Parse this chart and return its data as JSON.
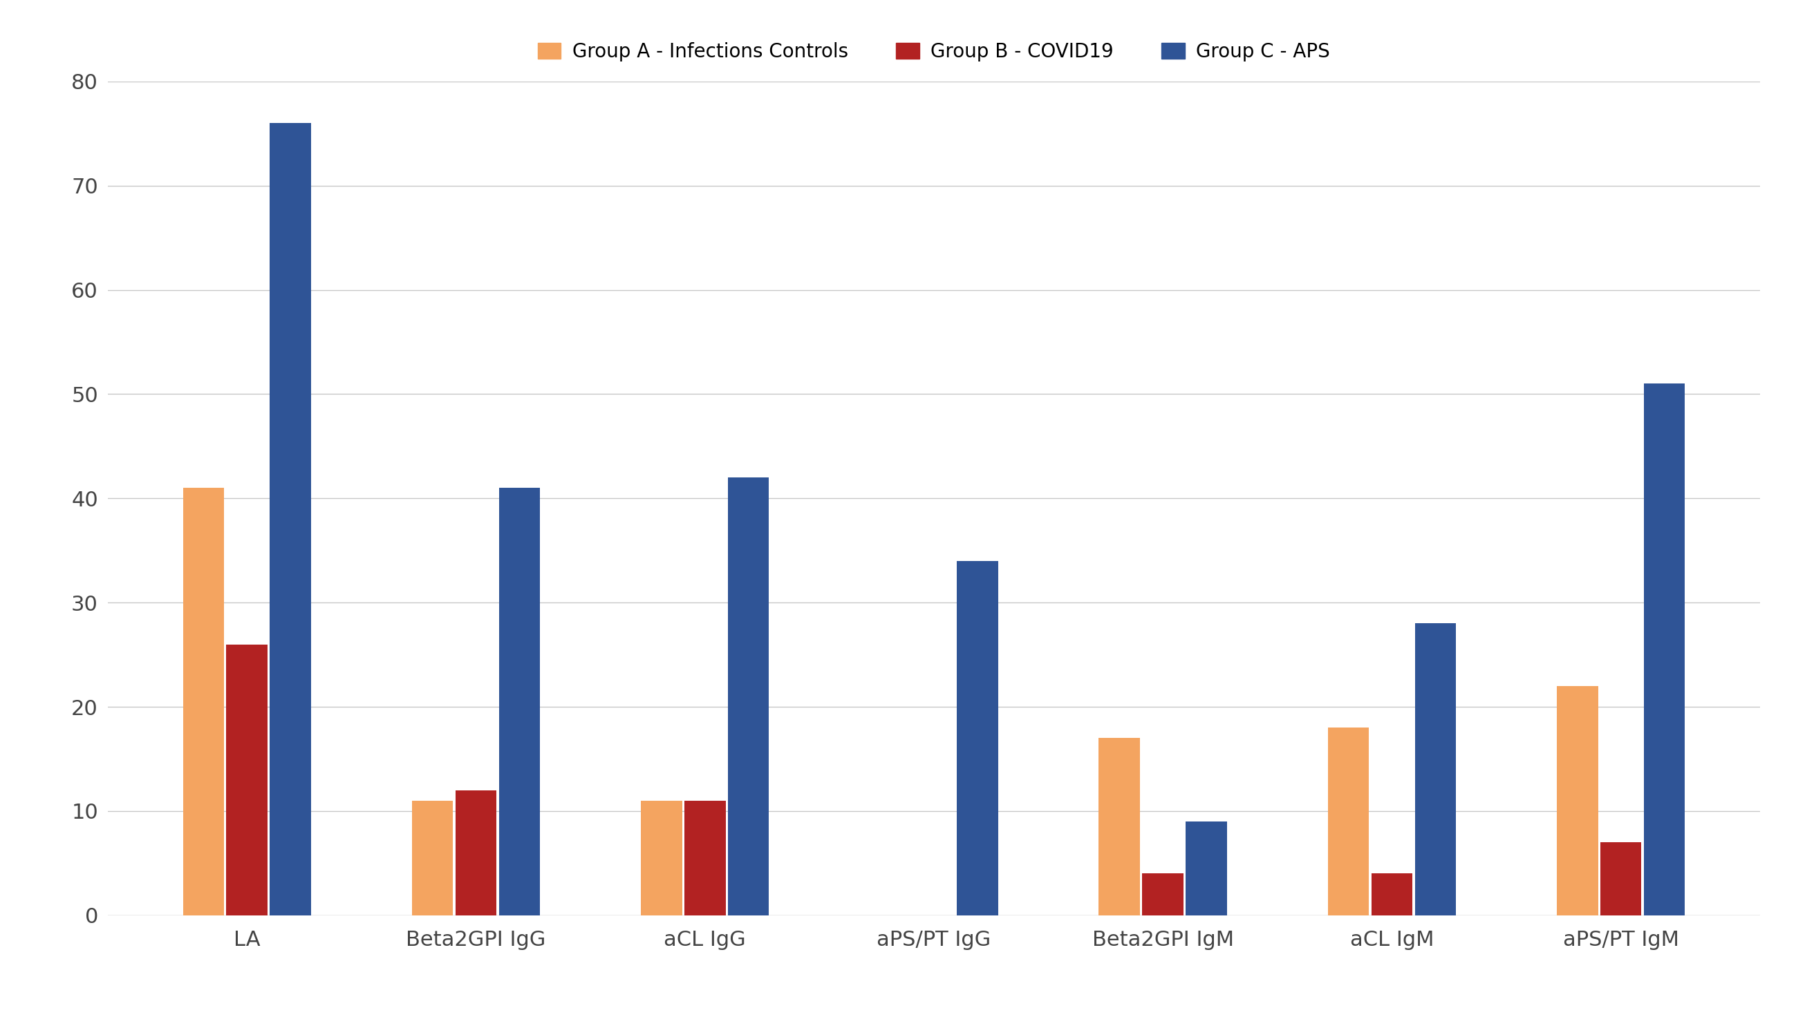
{
  "categories": [
    "LA",
    "Beta2GPI IgG",
    "aCL IgG",
    "aPS/PT IgG",
    "Beta2GPI IgM",
    "aCL IgM",
    "aPS/PT IgM"
  ],
  "groups": [
    "Group A - Infections Controls",
    "Group B - COVID19",
    "Group C - APS"
  ],
  "values": {
    "Group A - Infections Controls": [
      41,
      11,
      11,
      0,
      17,
      18,
      22
    ],
    "Group B - COVID19": [
      26,
      12,
      11,
      0,
      4,
      4,
      7
    ],
    "Group C - APS": [
      76,
      41,
      42,
      34,
      9,
      28,
      51
    ]
  },
  "colors": {
    "Group A - Infections Controls": "#F4A460",
    "Group B - COVID19": "#B22222",
    "Group C - APS": "#2F5496"
  },
  "ylim": [
    0,
    80
  ],
  "yticks": [
    0,
    10,
    20,
    30,
    40,
    50,
    60,
    70,
    80
  ],
  "background_color": "#FFFFFF",
  "grid_color": "#C8C8C8",
  "bar_width": 0.18,
  "tick_fontsize": 22,
  "legend_fontsize": 20
}
